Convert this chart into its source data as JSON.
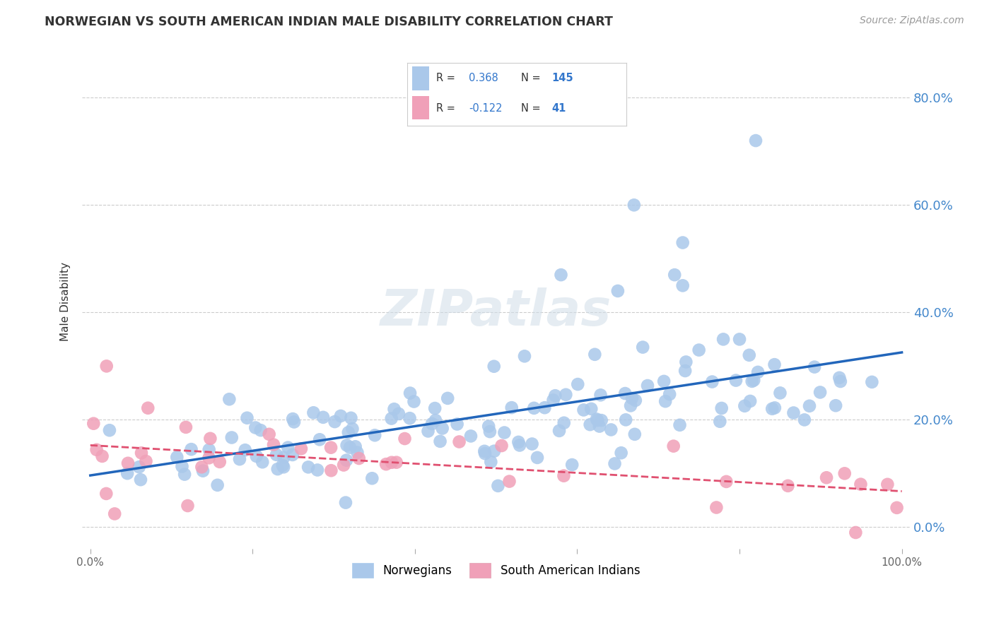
{
  "title": "NORWEGIAN VS SOUTH AMERICAN INDIAN MALE DISABILITY CORRELATION CHART",
  "source": "Source: ZipAtlas.com",
  "ylabel": "Male Disability",
  "xlim": [
    -0.01,
    1.01
  ],
  "ylim": [
    -0.04,
    0.88
  ],
  "x_ticks": [
    0.0,
    0.2,
    0.4,
    0.6,
    0.8,
    1.0
  ],
  "x_tick_labels": [
    "0.0%",
    "",
    "",
    "",
    "",
    "100.0%"
  ],
  "y_ticks": [
    0.0,
    0.2,
    0.4,
    0.6,
    0.8
  ],
  "y_tick_labels_right": [
    "0.0%",
    "20.0%",
    "40.0%",
    "60.0%",
    "80.0%"
  ],
  "background_color": "#ffffff",
  "grid_color": "#cccccc",
  "norwegian_color": "#aac8ea",
  "norwegian_line_color": "#2266bb",
  "south_american_color": "#f0a0b8",
  "south_american_line_color": "#e05070",
  "legend_R1": "0.368",
  "legend_N1": "145",
  "legend_R2": "-0.122",
  "legend_N2": "41",
  "watermark": "ZIPatlas"
}
